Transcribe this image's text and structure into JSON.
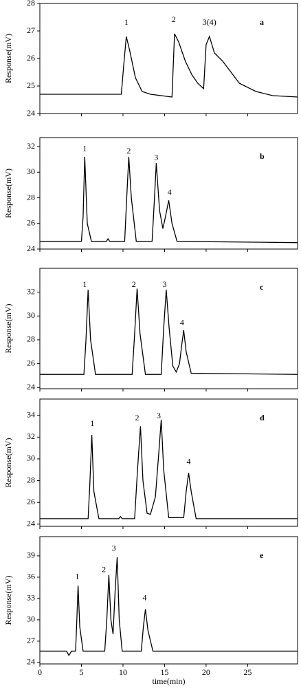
{
  "chart_data": [
    {
      "type": "line",
      "label": "a",
      "y_label": "Response(mV)",
      "ylim": [
        24,
        28
      ],
      "yticks": [
        24,
        25,
        26,
        27,
        28
      ],
      "xlim": [
        0,
        31
      ],
      "xticks": [
        0,
        5,
        10,
        15,
        20,
        25
      ],
      "color": "#000000",
      "x": [
        0,
        9.8,
        10.1,
        10.4,
        10.8,
        11.5,
        12.3,
        13.3,
        15.9,
        16.05,
        16.2,
        16.7,
        17.5,
        18.3,
        19.0,
        19.7,
        20.0,
        20.4,
        21.0,
        22.0,
        23.0,
        24.0,
        26.0,
        28.0,
        31.0
      ],
      "values": [
        24.7,
        24.7,
        25.8,
        26.8,
        26.3,
        25.3,
        24.8,
        24.7,
        24.6,
        25.8,
        26.9,
        26.6,
        25.9,
        25.4,
        25.1,
        24.9,
        26.5,
        26.8,
        26.2,
        25.9,
        25.5,
        25.1,
        24.8,
        24.65,
        24.6
      ],
      "annotations": [
        {
          "text": "1",
          "x": 10.4,
          "y": 27.3
        },
        {
          "text": "2",
          "x": 16.1,
          "y": 27.4
        },
        {
          "text": "3(4)",
          "x": 20.4,
          "y": 27.3
        }
      ]
    },
    {
      "type": "line",
      "label": "b",
      "y_label": "Response(mV)",
      "ylim": [
        24,
        32.7
      ],
      "yticks": [
        24,
        26,
        28,
        30,
        32
      ],
      "xlim": [
        0,
        31
      ],
      "xticks": [
        0,
        5,
        10,
        15,
        20,
        25
      ],
      "color": "#000000",
      "x": [
        0,
        5.0,
        5.2,
        5.4,
        5.7,
        6.2,
        8.0,
        8.2,
        8.4,
        10.2,
        10.45,
        10.7,
        11.0,
        11.6,
        13.5,
        13.75,
        14.0,
        14.4,
        14.8,
        15.1,
        15.5,
        15.9,
        16.5,
        31
      ],
      "values": [
        24.6,
        24.6,
        26.5,
        31.2,
        26.0,
        24.6,
        24.6,
        24.8,
        24.6,
        24.6,
        28.0,
        31.2,
        28.0,
        24.6,
        24.6,
        27.5,
        30.7,
        27.0,
        25.6,
        26.5,
        27.8,
        26.0,
        24.6,
        24.5
      ],
      "annotations": [
        {
          "text": "1",
          "x": 5.4,
          "y": 31.8
        },
        {
          "text": "2",
          "x": 10.7,
          "y": 31.6
        },
        {
          "text": "3",
          "x": 14.0,
          "y": 31.1
        },
        {
          "text": "4",
          "x": 15.6,
          "y": 28.4
        }
      ]
    },
    {
      "type": "line",
      "label": "c",
      "y_label": "Response(mV)",
      "ylim": [
        23.9,
        34
      ],
      "yticks": [
        24,
        26,
        28,
        30,
        32
      ],
      "xlim": [
        0,
        31
      ],
      "xticks": [
        0,
        5,
        10,
        15,
        20,
        25
      ],
      "color": "#000000",
      "x": [
        0,
        5.3,
        5.55,
        5.8,
        6.1,
        6.7,
        11.1,
        11.4,
        11.7,
        12.05,
        12.7,
        14.6,
        14.9,
        15.2,
        15.55,
        16.0,
        16.4,
        16.8,
        17.05,
        17.3,
        17.6,
        18.2,
        31
      ],
      "values": [
        25.1,
        25.1,
        28,
        32.2,
        28,
        25.1,
        25.1,
        28.5,
        32.3,
        28.5,
        25.1,
        25.1,
        29,
        32.2,
        29,
        25.8,
        25.3,
        26,
        27.5,
        28.8,
        27,
        25.2,
        25.1
      ],
      "annotations": [
        {
          "text": "1",
          "x": 5.4,
          "y": 32.6
        },
        {
          "text": "2",
          "x": 11.3,
          "y": 32.6
        },
        {
          "text": "3",
          "x": 15.0,
          "y": 32.6
        },
        {
          "text": "4",
          "x": 17.1,
          "y": 29.4
        }
      ]
    },
    {
      "type": "line",
      "label": "d",
      "y_label": "Response(mV)",
      "ylim": [
        23.8,
        35.5
      ],
      "yticks": [
        24,
        26,
        28,
        30,
        32,
        34
      ],
      "xlim": [
        0,
        31
      ],
      "xticks": [
        0,
        5,
        10,
        15,
        20,
        25
      ],
      "color": "#000000",
      "x": [
        0,
        5.8,
        6.0,
        6.25,
        6.5,
        7.1,
        9.5,
        9.7,
        9.9,
        11.4,
        11.75,
        12.1,
        12.4,
        12.9,
        13.3,
        13.9,
        14.3,
        14.6,
        14.9,
        15.5,
        17.3,
        17.6,
        17.9,
        18.2,
        18.8,
        31
      ],
      "values": [
        24.5,
        24.5,
        27.5,
        32.2,
        27,
        24.5,
        24.5,
        24.7,
        24.5,
        24.5,
        29,
        33,
        28,
        25,
        24.9,
        26.5,
        30.5,
        33.6,
        29,
        24.6,
        24.6,
        27,
        28.7,
        27,
        24.5,
        24.5
      ],
      "annotations": [
        {
          "text": "1",
          "x": 6.3,
          "y": 33.2
        },
        {
          "text": "2",
          "x": 11.7,
          "y": 33.7
        },
        {
          "text": "3",
          "x": 14.3,
          "y": 33.9
        },
        {
          "text": "4",
          "x": 17.9,
          "y": 29.7
        }
      ]
    },
    {
      "type": "line",
      "label": "e",
      "y_label": "Response(mV)",
      "x_label": "time(min)",
      "xtick_labels": true,
      "ylim": [
        23.8,
        41.7
      ],
      "yticks": [
        24,
        27,
        30,
        33,
        36,
        39
      ],
      "xlim": [
        0,
        31
      ],
      "xticks": [
        0,
        5,
        10,
        15,
        20,
        25
      ],
      "color": "#000000",
      "x": [
        0,
        3.2,
        3.5,
        3.8,
        4.3,
        4.45,
        4.6,
        4.8,
        5.2,
        7.8,
        8.05,
        8.3,
        8.55,
        8.8,
        9.05,
        9.3,
        9.55,
        9.9,
        12.2,
        12.45,
        12.7,
        13.0,
        13.6,
        31
      ],
      "values": [
        25.6,
        25.6,
        25.0,
        25.6,
        25.6,
        30,
        34.8,
        29,
        25.6,
        25.6,
        30,
        36.3,
        30,
        28,
        34,
        38.8,
        30,
        25.6,
        25.6,
        29,
        31.5,
        28.5,
        25.6,
        25.6
      ],
      "annotations": [
        {
          "text": "1",
          "x": 4.5,
          "y": 36.0
        },
        {
          "text": "2",
          "x": 7.7,
          "y": 37.0
        },
        {
          "text": "3",
          "x": 8.9,
          "y": 40.0
        },
        {
          "text": "4",
          "x": 12.6,
          "y": 33.0
        }
      ]
    }
  ]
}
